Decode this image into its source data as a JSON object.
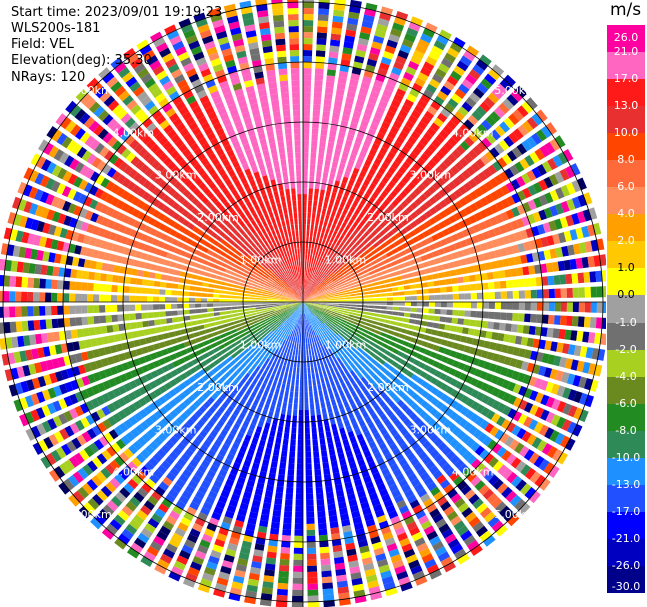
{
  "header": {
    "start_time": "Start time: 2023/09/01 19:19:23",
    "instrument": "WLS200s-181",
    "field": "Field: VEL",
    "elevation": "Elevation(deg): 35.30",
    "nrays": "NRays: 120"
  },
  "colorbar": {
    "unit": "m/s",
    "ticks": [
      "26.0",
      "21.0",
      "17.0",
      "13.0",
      "10.0",
      "8.0",
      "6.0",
      "4.0",
      "2.0",
      "1.0",
      "0.0",
      "-1.0",
      "-2.0",
      "-4.0",
      "-6.0",
      "-8.0",
      "-10.0",
      "-13.0",
      "-17.0",
      "-21.0",
      "-26.0",
      "-30.0"
    ],
    "colors": [
      "#ff00a0",
      "#ff66c2",
      "#ff1a1a",
      "#e83030",
      "#ff4500",
      "#ff6a3a",
      "#ff8c5a",
      "#ffa000",
      "#ffc800",
      "#ffff00",
      "#a0a0a0",
      "#707070",
      "#a8d020",
      "#6a8a20",
      "#228b22",
      "#2e8b57",
      "#1e90ff",
      "#2050ff",
      "#0000ff",
      "#0000c0",
      "#00008b",
      "#000060"
    ]
  },
  "chart_data": {
    "type": "ppi",
    "title": "",
    "field": "VEL",
    "units": "m/s",
    "range_rings_km": [
      1.0,
      2.0,
      3.0,
      4.0,
      5.0
    ],
    "range_ring_labels": [
      "1.00km",
      "2.00km",
      "3.00km",
      "4.00km",
      "5.00km"
    ],
    "nrays": 120,
    "vmin": -30.0,
    "vmax": 26.0,
    "pattern": {
      "clean_range_km": 4.0,
      "velocity_by_direction": {
        "north": 17.0,
        "east": 0.0,
        "south": -17.0,
        "west": 0.0
      },
      "noisy_beyond_km": 4.0
    }
  }
}
